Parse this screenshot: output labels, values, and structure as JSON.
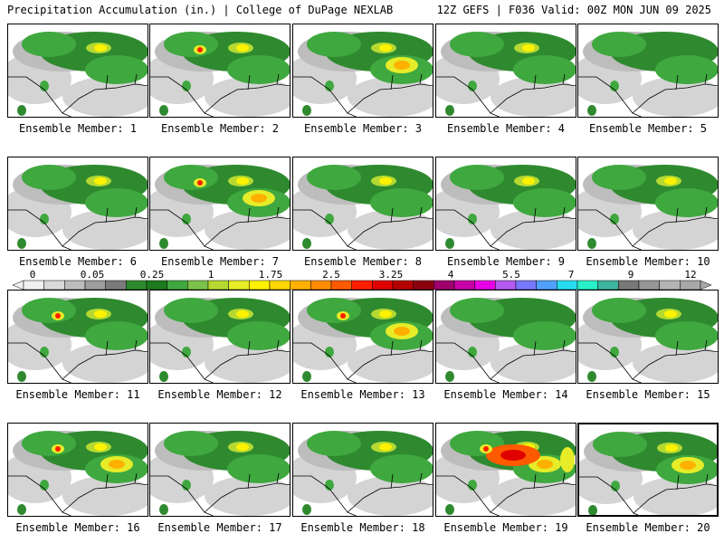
{
  "header": {
    "left": "Precipitation Accumulation (in.) | College of DuPage NEXLAB",
    "right": "12Z GEFS | F036 Valid: 00Z MON JUN 09 2025"
  },
  "panels": [
    {
      "label": "Ensemble Member: 1"
    },
    {
      "label": "Ensemble Member: 2"
    },
    {
      "label": "Ensemble Member: 3"
    },
    {
      "label": "Ensemble Member: 4"
    },
    {
      "label": "Ensemble Member: 5"
    },
    {
      "label": "Ensemble Member: 6"
    },
    {
      "label": "Ensemble Member: 7"
    },
    {
      "label": "Ensemble Member: 8"
    },
    {
      "label": "Ensemble Member: 9"
    },
    {
      "label": "Ensemble Member: 10"
    },
    {
      "label": "Ensemble Member: 11"
    },
    {
      "label": "Ensemble Member: 12"
    },
    {
      "label": "Ensemble Member: 13"
    },
    {
      "label": "Ensemble Member: 14"
    },
    {
      "label": "Ensemble Member: 15"
    },
    {
      "label": "Ensemble Member: 16"
    },
    {
      "label": "Ensemble Member: 17"
    },
    {
      "label": "Ensemble Member: 18"
    },
    {
      "label": "Ensemble Member: 19"
    },
    {
      "label": "Ensemble Member: 20"
    }
  ],
  "colorbar": {
    "ticks": [
      "0",
      "0.05",
      "0.25",
      "1",
      "1.75",
      "2.5",
      "3.25",
      "4",
      "5.5",
      "7",
      "9",
      "12"
    ],
    "colors": [
      "#f0f0f0",
      "#d9d9d9",
      "#bdbdbd",
      "#9e9e9e",
      "#7a7a7a",
      "#2f8a2f",
      "#1e7a1e",
      "#3fa83f",
      "#7cc24a",
      "#b5d932",
      "#e6ec28",
      "#fff200",
      "#ffd700",
      "#ffb000",
      "#ff8c00",
      "#ff5a00",
      "#ff1e00",
      "#e00000",
      "#b40000",
      "#8c0010",
      "#a0006e",
      "#c800a8",
      "#e600e6",
      "#b45af0",
      "#7878ff",
      "#50a0ff",
      "#28dcf0",
      "#28f0c8",
      "#3cb4a0",
      "#787878",
      "#969696",
      "#b4b4b4",
      "#a8a8a8"
    ]
  }
}
